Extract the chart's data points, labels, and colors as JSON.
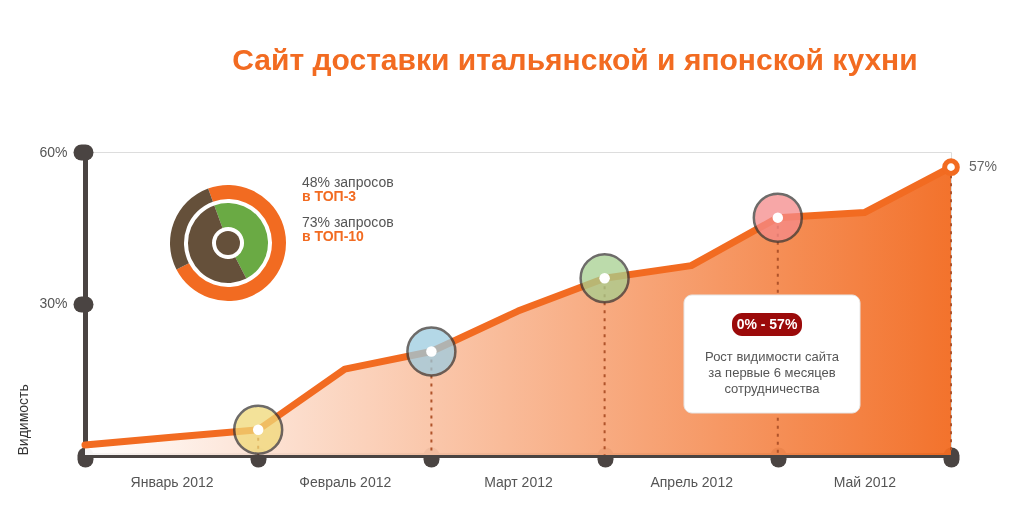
{
  "chart_data": [
    {
      "type": "area",
      "title": "Сайт доставки итальянской и японской кухни",
      "ylabel": "Видимость",
      "categories": [
        null,
        "Январь 2012",
        null,
        "Февраль 2012",
        null,
        "Март 2012",
        null,
        "Апрель 2012",
        null,
        "Май 2012",
        null
      ],
      "ylim": [
        0,
        60
      ],
      "yticks": [
        {
          "value": 30,
          "label": "30%"
        },
        {
          "value": 60,
          "label": "60%"
        }
      ],
      "series": [
        {
          "type": "area",
          "color": "#f26b21",
          "values": [
            2,
            3.5,
            5,
            17,
            20.5,
            28.5,
            35,
            37.5,
            47,
            48,
            57
          ],
          "value_labels": [
            null,
            null,
            null,
            null,
            null,
            null,
            null,
            null,
            null,
            null,
            "57%"
          ]
        },
        {
          "type": "scatter",
          "values": [
            null,
            null,
            5,
            null,
            20.5,
            null,
            35,
            null,
            47,
            null,
            null
          ],
          "colors": [
            null,
            null,
            "#f0d978",
            null,
            "#9ccbe0",
            null,
            "#a6cf8f",
            null,
            "#f58a8a",
            null,
            null
          ]
        }
      ],
      "annotations": [
        "0% - 57%",
        "Рост видимости сайта\nза первые 6 месяцев\nсотрудничества"
      ]
    },
    {
      "type": "donut",
      "categories": [
        null,
        null
      ],
      "series": [
        {
          "values": [
            73,
            27
          ],
          "colors": [
            "#f26b21",
            "#65503a"
          ]
        },
        {
          "values": [
            48,
            52
          ],
          "colors": [
            "#6aaa44",
            "#65503a"
          ]
        }
      ],
      "annotations": [
        "48% запросов",
        "в ТОП-3",
        "73% запросов",
        "в ТОП-10"
      ]
    }
  ]
}
